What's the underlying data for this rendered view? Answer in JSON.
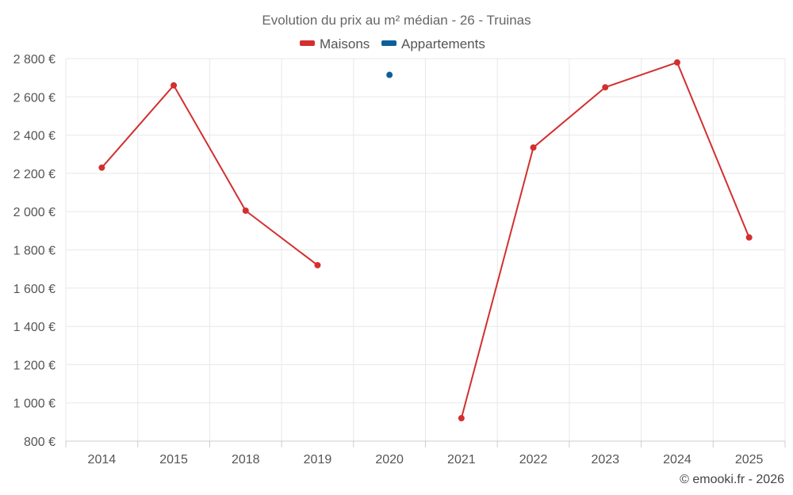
{
  "chart_data": {
    "type": "line",
    "title": "Evolution du prix au m² médian - 26 - Truinas",
    "categories": [
      "2014",
      "2015",
      "2018",
      "2019",
      "2020",
      "2021",
      "2022",
      "2023",
      "2024",
      "2025"
    ],
    "series": [
      {
        "name": "Maisons",
        "color": "#d32f2f",
        "values": [
          2230,
          2660,
          2005,
          1720,
          null,
          920,
          2335,
          2650,
          2780,
          1865
        ]
      },
      {
        "name": "Appartements",
        "color": "#0d5f9c",
        "values": [
          null,
          null,
          null,
          null,
          2715,
          null,
          null,
          null,
          null,
          null
        ]
      }
    ],
    "y_ticks": [
      800,
      1000,
      1200,
      1400,
      1600,
      1800,
      2000,
      2200,
      2400,
      2600,
      2800
    ],
    "y_tick_labels": [
      "800 €",
      "1 000 €",
      "1 200 €",
      "1 400 €",
      "1 600 €",
      "1 800 €",
      "2 000 €",
      "2 200 €",
      "2 400 €",
      "2 600 €",
      "2 800 €"
    ],
    "ylim": [
      800,
      2800
    ],
    "grid": true,
    "legend_position": "top-center",
    "credit": "© emooki.fr - 2026"
  }
}
